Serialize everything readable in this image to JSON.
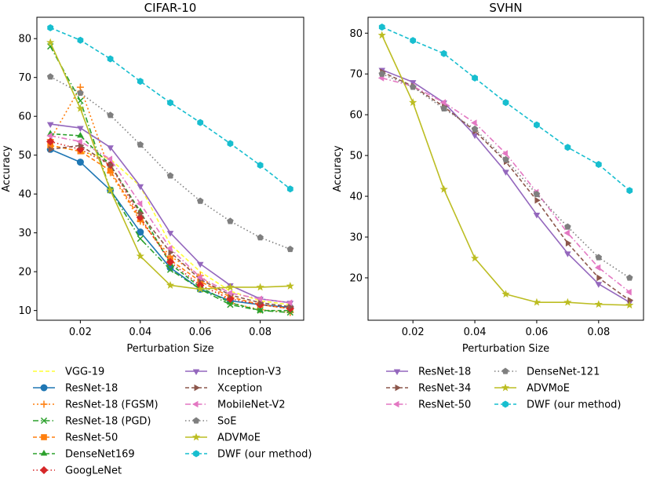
{
  "chart_data": [
    {
      "type": "line",
      "title": "CIFAR-10",
      "xlabel": "Perturbation Size",
      "ylabel": "Accuracy",
      "x": [
        0.01,
        0.02,
        0.03,
        0.04,
        0.05,
        0.06,
        0.07,
        0.08,
        0.09
      ],
      "xlim": [
        0.0055,
        0.0945
      ],
      "ylim": [
        7.5,
        85.5
      ],
      "xticks": [
        0.02,
        0.04,
        0.06,
        0.08
      ],
      "xtick_labels": [
        "0.02",
        "0.04",
        "0.06",
        "0.08"
      ],
      "yticks": [
        10,
        20,
        30,
        40,
        50,
        60,
        70,
        80
      ],
      "ytick_labels": [
        "10",
        "20",
        "30",
        "40",
        "50",
        "60",
        "70",
        "80"
      ],
      "legend_columns": 2,
      "legend_position": "below",
      "series": [
        {
          "name": "VGG-19",
          "color": "#ffff33",
          "dash": "5,3",
          "marker": "none",
          "values": [
            52.5,
            51.0,
            49.0,
            42.0,
            27.0,
            20.0,
            15.0,
            12.5,
            11.5
          ]
        },
        {
          "name": "ResNet-18",
          "color": "#1f77b4",
          "dash": "",
          "marker": "circle",
          "values": [
            51.5,
            48.2,
            41.0,
            30.2,
            21.0,
            15.5,
            12.5,
            11.5,
            10.8
          ]
        },
        {
          "name": "ResNet-18 (FGSM)",
          "color": "#ff7f0e",
          "dash": "2,3",
          "marker": "plus",
          "values": [
            54.0,
            67.5,
            45.5,
            33.0,
            24.0,
            19.0,
            12.0,
            10.2,
            9.5
          ]
        },
        {
          "name": "ResNet-18 (PGD)",
          "color": "#2ca02c",
          "dash": "7,3,1.5,3",
          "marker": "x",
          "values": [
            78.0,
            64.0,
            41.0,
            28.5,
            20.5,
            15.5,
            11.5,
            10.0,
            9.5
          ]
        },
        {
          "name": "ResNet-50",
          "color": "#ff7f0e",
          "dash": "5,3",
          "marker": "square",
          "values": [
            52.5,
            51.0,
            46.0,
            33.5,
            23.0,
            17.5,
            13.5,
            11.5,
            10.5
          ]
        },
        {
          "name": "DenseNet169",
          "color": "#2ca02c",
          "dash": "5,3",
          "marker": "triangle-up",
          "values": [
            55.5,
            55.0,
            47.5,
            35.5,
            22.0,
            16.0,
            12.0,
            10.0,
            10.0
          ]
        },
        {
          "name": "GoogLeNet",
          "color": "#d62728",
          "dash": "1.5,3",
          "marker": "diamond",
          "values": [
            53.5,
            51.5,
            47.5,
            34.0,
            22.5,
            16.5,
            13.0,
            11.5,
            10.5
          ]
        },
        {
          "name": "Inception-V3",
          "color": "#9467bd",
          "dash": "",
          "marker": "triangle-down",
          "values": [
            58.0,
            57.0,
            52.0,
            42.0,
            30.0,
            22.0,
            16.5,
            13.0,
            12.0
          ]
        },
        {
          "name": "Xception",
          "color": "#8c564b",
          "dash": "5,3",
          "marker": "triangle-right",
          "values": [
            51.5,
            52.5,
            47.5,
            35.0,
            25.0,
            18.0,
            14.0,
            12.0,
            11.0
          ]
        },
        {
          "name": "MobileNet-V2",
          "color": "#e377c2",
          "dash": "7,3,1.5,3",
          "marker": "triangle-left",
          "values": [
            55.0,
            53.5,
            49.0,
            37.5,
            26.0,
            18.5,
            14.5,
            13.0,
            12.0
          ]
        },
        {
          "name": "SoE",
          "color": "#7f7f7f",
          "dash": "1.5,3",
          "marker": "pentagon",
          "values": [
            70.2,
            66.0,
            60.3,
            52.7,
            44.7,
            38.2,
            33.0,
            28.8,
            25.8
          ]
        },
        {
          "name": "ADVMoE",
          "color": "#bcbd22",
          "dash": "",
          "marker": "star",
          "values": [
            79.0,
            62.0,
            41.0,
            24.0,
            16.5,
            15.5,
            16.0,
            16.0,
            16.3
          ]
        },
        {
          "name": "DWF (our method)",
          "color": "#17becf",
          "dash": "5,3",
          "marker": "hexagon",
          "values": [
            82.8,
            79.6,
            74.8,
            69.0,
            63.5,
            58.4,
            53.0,
            47.4,
            41.3
          ]
        }
      ]
    },
    {
      "type": "line",
      "title": "SVHN",
      "xlabel": "Perturbation Size",
      "ylabel": "Accuracy",
      "x": [
        0.01,
        0.02,
        0.03,
        0.04,
        0.05,
        0.06,
        0.07,
        0.08,
        0.09
      ],
      "xlim": [
        0.0055,
        0.0945
      ],
      "ylim": [
        9.6,
        83.9
      ],
      "xticks": [
        0.02,
        0.04,
        0.06,
        0.08
      ],
      "xtick_labels": [
        "0.02",
        "0.04",
        "0.06",
        "0.08"
      ],
      "yticks": [
        20,
        30,
        40,
        50,
        60,
        70,
        80
      ],
      "ytick_labels": [
        "20",
        "30",
        "40",
        "50",
        "60",
        "70",
        "80"
      ],
      "legend_columns": 2,
      "legend_position": "below",
      "series": [
        {
          "name": "ResNet-18",
          "color": "#9467bd",
          "dash": "",
          "marker": "triangle-down",
          "values": [
            71.0,
            68.0,
            63.0,
            55.0,
            46.0,
            35.5,
            26.0,
            18.5,
            14.0
          ]
        },
        {
          "name": "ResNet-34",
          "color": "#8c564b",
          "dash": "5,3",
          "marker": "triangle-right",
          "values": [
            70.5,
            67.0,
            62.0,
            56.0,
            48.5,
            39.0,
            28.5,
            20.0,
            14.5
          ]
        },
        {
          "name": "ResNet-50",
          "color": "#e377c2",
          "dash": "7,3,1.5,3",
          "marker": "triangle-left",
          "values": [
            69.0,
            67.0,
            63.0,
            58.0,
            50.5,
            41.0,
            31.0,
            22.5,
            16.5
          ]
        },
        {
          "name": "DenseNet-121",
          "color": "#7f7f7f",
          "dash": "1.5,3",
          "marker": "pentagon",
          "values": [
            70.0,
            66.8,
            61.5,
            56.5,
            49.0,
            40.5,
            32.5,
            25.0,
            20.0
          ]
        },
        {
          "name": "ADVMoE",
          "color": "#bcbd22",
          "dash": "",
          "marker": "star",
          "values": [
            79.5,
            63.0,
            41.7,
            24.8,
            16.0,
            14.0,
            14.0,
            13.5,
            13.3
          ]
        },
        {
          "name": "DWF (our method)",
          "color": "#17becf",
          "dash": "5,3",
          "marker": "hexagon",
          "values": [
            81.5,
            78.2,
            75.0,
            69.0,
            63.0,
            57.5,
            52.0,
            47.8,
            41.4
          ]
        }
      ]
    }
  ]
}
